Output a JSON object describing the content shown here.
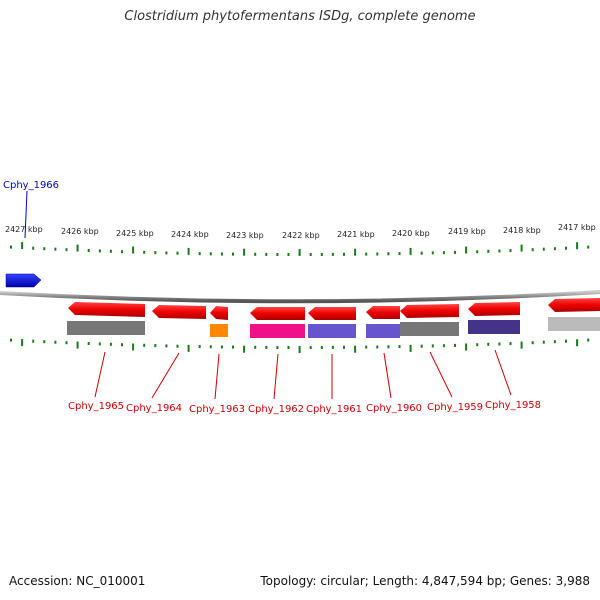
{
  "title": "Clostridium phytofermentans ISDg, complete genome",
  "footer": {
    "accession": "Accession: NC_010001",
    "summary": "Topology: circular; Length: 4,847,594 bp; Genes: 3,988"
  },
  "colors": {
    "forward_gene": "#ee0000",
    "reverse_gene": "#0000dd",
    "tick": "#1a7a1a",
    "backbone": "#888888",
    "label_red": "#cc0000",
    "label_blue": "#0000cc"
  },
  "kbp_ticks": [
    "2427 kbp",
    "2426 kbp",
    "2425 kbp",
    "2424 kbp",
    "2423 kbp",
    "2422 kbp",
    "2421 kbp",
    "2420 kbp",
    "2419 kbp",
    "2418 kbp",
    "2417 kbp"
  ],
  "genes": [
    {
      "name": "Cphy_1966",
      "strand": "reverse",
      "cog_color": "#0000dd"
    },
    {
      "name": "Cphy_1965",
      "strand": "forward",
      "cog_color": "#777777"
    },
    {
      "name": "Cphy_1964",
      "strand": "forward",
      "cog_color": ""
    },
    {
      "name": "Cphy_1963",
      "strand": "forward",
      "cog_color": "#ff8800"
    },
    {
      "name": "Cphy_1962",
      "strand": "forward",
      "cog_color": "#ee1188"
    },
    {
      "name": "Cphy_1961",
      "strand": "forward",
      "cog_color": "#6655cc"
    },
    {
      "name": "Cphy_1960",
      "strand": "forward",
      "cog_color": "#6655cc"
    },
    {
      "name": "Cphy_1959",
      "strand": "forward",
      "cog_color": "#777777"
    },
    {
      "name": "Cphy_1958",
      "strand": "forward",
      "cog_color": "#443388"
    },
    {
      "name": "",
      "strand": "forward",
      "cog_color": "#bbbbbb"
    }
  ]
}
